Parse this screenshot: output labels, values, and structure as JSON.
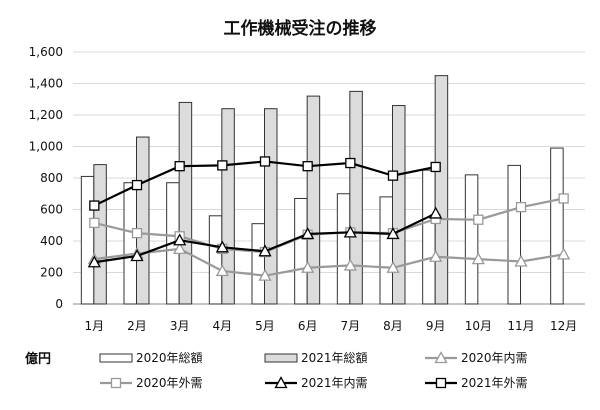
{
  "chart_data": {
    "type": "bar",
    "title": "工作機械受注の推移",
    "unit_label": "億円",
    "categories": [
      "1月",
      "2月",
      "3月",
      "4月",
      "5月",
      "6月",
      "7月",
      "8月",
      "9月",
      "10月",
      "11月",
      "12月"
    ],
    "y_ticks": [
      "0",
      "200",
      "400",
      "600",
      "800",
      "1,000",
      "1,200",
      "1,400",
      "1,600"
    ],
    "ylim": [
      0,
      1600
    ],
    "grid": true,
    "legend_position": "bottom",
    "bar_series": [
      {
        "name": "2020年総額",
        "fill": "#ffffff",
        "stroke": "#333333",
        "values": [
          810,
          770,
          770,
          560,
          510,
          670,
          700,
          680,
          850,
          820,
          880,
          990
        ]
      },
      {
        "name": "2021年総額",
        "fill": "#dcdcdc",
        "stroke": "#333333",
        "values": [
          885,
          1060,
          1280,
          1240,
          1240,
          1320,
          1350,
          1260,
          1450,
          null,
          null,
          null
        ]
      }
    ],
    "line_series": [
      {
        "name": "2020年内需",
        "color": "#999999",
        "marker": "triangle",
        "values": [
          285,
          320,
          350,
          210,
          180,
          230,
          245,
          230,
          300,
          285,
          270,
          315
        ]
      },
      {
        "name": "2020年外需",
        "color": "#999999",
        "marker": "square",
        "values": [
          515,
          450,
          430,
          350,
          330,
          440,
          455,
          450,
          540,
          535,
          615,
          670
        ]
      },
      {
        "name": "2021年内需",
        "color": "#000000",
        "marker": "triangle",
        "values": [
          265,
          305,
          405,
          360,
          335,
          445,
          455,
          445,
          575,
          null,
          null,
          null
        ]
      },
      {
        "name": "2021年外需",
        "color": "#000000",
        "marker": "square",
        "values": [
          625,
          755,
          875,
          880,
          905,
          875,
          895,
          815,
          870,
          null,
          null,
          null
        ]
      }
    ]
  }
}
